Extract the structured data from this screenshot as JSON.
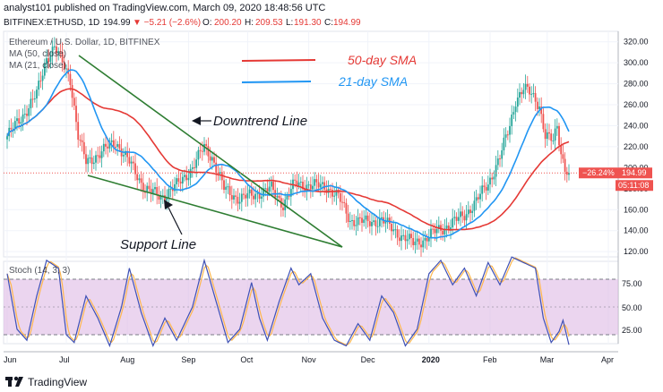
{
  "header": {
    "publisher": "analyst101 published on TradingView.com, March 09, 2020 18:48:56 UTC"
  },
  "symbol": {
    "name": "BITFINEX:ETHUSD, 1D",
    "last": "194.99",
    "change": "▼ −5.21 (−2.6%)",
    "open_label": "O:",
    "open": "200.20",
    "high_label": "H:",
    "high": "209.53",
    "low_label": "L:",
    "low": "191.30",
    "close_label": "C:",
    "close": "194.99"
  },
  "legend": {
    "title": "Ethereum / U.S. Dollar, 1D, BITFINEX",
    "ma50": "MA (50, close)",
    "ma21": "MA (21, close)"
  },
  "annotations": {
    "downtrend": "Downtrend Line",
    "support": "Support Line",
    "sma50": "50-day SMA",
    "sma21": "21-day SMA"
  },
  "badges": {
    "pct": "−26.24%",
    "price": "194.99",
    "time": "05:11:08"
  },
  "stoch": {
    "label": "Stoch (14, 3, 3)",
    "ticks": [
      "75.00",
      "50.00",
      "25.00"
    ]
  },
  "footer": {
    "brand": "TradingView"
  },
  "colors": {
    "up": "#26a69a",
    "down": "#ef5350",
    "sma50": "#e53935",
    "sma21": "#2196f3",
    "trend": "#2e7d32",
    "stoch_k": "#3f51b5",
    "stoch_d": "#ffb74d",
    "band": "#e1bee7"
  },
  "chart_data": {
    "type": "candlestick",
    "price_axis": {
      "ticks": [
        320,
        300,
        280,
        260,
        240,
        220,
        200,
        180,
        160,
        140,
        120
      ],
      "range": [
        115,
        330
      ]
    },
    "x_labels": [
      "Jun",
      "Jul",
      "Aug",
      "Sep",
      "Oct",
      "Nov",
      "Dec",
      "2020",
      "Feb",
      "Mar",
      "Apr"
    ],
    "anchors": [
      {
        "d": 0,
        "p": 230
      },
      {
        "d": 8,
        "p": 250
      },
      {
        "d": 15,
        "p": 270
      },
      {
        "d": 20,
        "p": 305
      },
      {
        "d": 24,
        "p": 315
      },
      {
        "d": 28,
        "p": 300
      },
      {
        "d": 32,
        "p": 285
      },
      {
        "d": 36,
        "p": 230
      },
      {
        "d": 40,
        "p": 205
      },
      {
        "d": 48,
        "p": 215
      },
      {
        "d": 55,
        "p": 225
      },
      {
        "d": 62,
        "p": 205
      },
      {
        "d": 70,
        "p": 180
      },
      {
        "d": 78,
        "p": 172
      },
      {
        "d": 86,
        "p": 183
      },
      {
        "d": 94,
        "p": 200
      },
      {
        "d": 100,
        "p": 220
      },
      {
        "d": 104,
        "p": 210
      },
      {
        "d": 110,
        "p": 180
      },
      {
        "d": 118,
        "p": 170
      },
      {
        "d": 126,
        "p": 175
      },
      {
        "d": 134,
        "p": 180
      },
      {
        "d": 140,
        "p": 165
      },
      {
        "d": 146,
        "p": 185
      },
      {
        "d": 154,
        "p": 183
      },
      {
        "d": 162,
        "p": 182
      },
      {
        "d": 168,
        "p": 172
      },
      {
        "d": 174,
        "p": 150
      },
      {
        "d": 182,
        "p": 148
      },
      {
        "d": 190,
        "p": 150
      },
      {
        "d": 200,
        "p": 135
      },
      {
        "d": 206,
        "p": 128
      },
      {
        "d": 212,
        "p": 132
      },
      {
        "d": 218,
        "p": 140
      },
      {
        "d": 224,
        "p": 145
      },
      {
        "d": 232,
        "p": 155
      },
      {
        "d": 238,
        "p": 168
      },
      {
        "d": 244,
        "p": 185
      },
      {
        "d": 250,
        "p": 210
      },
      {
        "d": 255,
        "p": 240
      },
      {
        "d": 258,
        "p": 265
      },
      {
        "d": 262,
        "p": 275
      },
      {
        "d": 266,
        "p": 270
      },
      {
        "d": 270,
        "p": 260
      },
      {
        "d": 273,
        "p": 230
      },
      {
        "d": 277,
        "p": 225
      },
      {
        "d": 279,
        "p": 240
      },
      {
        "d": 281,
        "p": 215
      },
      {
        "d": 283,
        "p": 200
      },
      {
        "d": 285,
        "p": 194.99
      }
    ],
    "stoch_k": [
      {
        "d": 0,
        "v": 80
      },
      {
        "d": 5,
        "v": 30
      },
      {
        "d": 10,
        "v": 20
      },
      {
        "d": 15,
        "v": 60
      },
      {
        "d": 20,
        "v": 92
      },
      {
        "d": 26,
        "v": 85
      },
      {
        "d": 30,
        "v": 25
      },
      {
        "d": 34,
        "v": 18
      },
      {
        "d": 40,
        "v": 60
      },
      {
        "d": 46,
        "v": 40
      },
      {
        "d": 52,
        "v": 15
      },
      {
        "d": 58,
        "v": 50
      },
      {
        "d": 62,
        "v": 85
      },
      {
        "d": 68,
        "v": 45
      },
      {
        "d": 74,
        "v": 15
      },
      {
        "d": 80,
        "v": 40
      },
      {
        "d": 86,
        "v": 20
      },
      {
        "d": 94,
        "v": 50
      },
      {
        "d": 100,
        "v": 92
      },
      {
        "d": 106,
        "v": 55
      },
      {
        "d": 112,
        "v": 18
      },
      {
        "d": 118,
        "v": 30
      },
      {
        "d": 124,
        "v": 72
      },
      {
        "d": 128,
        "v": 40
      },
      {
        "d": 132,
        "v": 20
      },
      {
        "d": 138,
        "v": 55
      },
      {
        "d": 144,
        "v": 85
      },
      {
        "d": 148,
        "v": 70
      },
      {
        "d": 154,
        "v": 80
      },
      {
        "d": 160,
        "v": 40
      },
      {
        "d": 166,
        "v": 20
      },
      {
        "d": 172,
        "v": 15
      },
      {
        "d": 178,
        "v": 35
      },
      {
        "d": 184,
        "v": 20
      },
      {
        "d": 190,
        "v": 60
      },
      {
        "d": 196,
        "v": 45
      },
      {
        "d": 202,
        "v": 15
      },
      {
        "d": 208,
        "v": 30
      },
      {
        "d": 214,
        "v": 80
      },
      {
        "d": 220,
        "v": 92
      },
      {
        "d": 226,
        "v": 70
      },
      {
        "d": 232,
        "v": 85
      },
      {
        "d": 238,
        "v": 60
      },
      {
        "d": 244,
        "v": 90
      },
      {
        "d": 250,
        "v": 70
      },
      {
        "d": 256,
        "v": 95
      },
      {
        "d": 262,
        "v": 90
      },
      {
        "d": 268,
        "v": 85
      },
      {
        "d": 272,
        "v": 40
      },
      {
        "d": 276,
        "v": 18
      },
      {
        "d": 280,
        "v": 28
      },
      {
        "d": 282,
        "v": 38
      },
      {
        "d": 285,
        "v": 16
      }
    ]
  }
}
